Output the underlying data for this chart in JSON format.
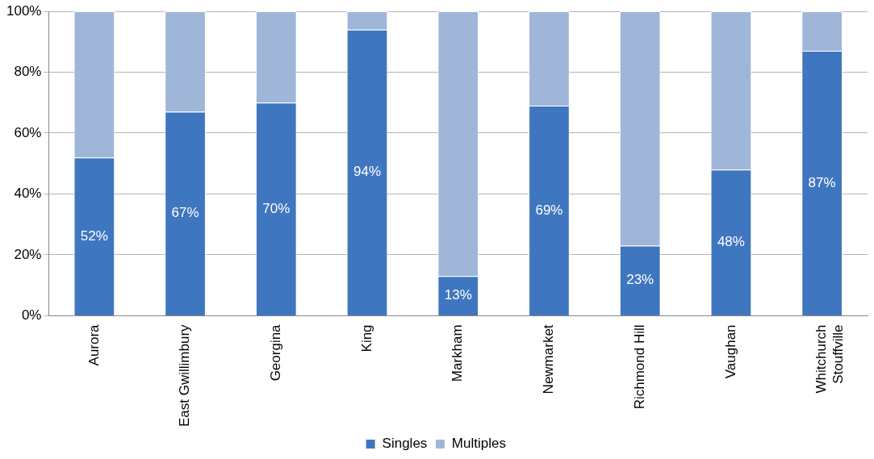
{
  "chart_data": {
    "type": "bar",
    "stacked": true,
    "categories": [
      "Aurora",
      "East Gwillimbury",
      "Georgina",
      "King",
      "Markham",
      "Newmarket",
      "Richmond Hill",
      "Vaughan",
      "Whitchurch\nStouffville"
    ],
    "series": [
      {
        "name": "Singles",
        "color": "#3f76c0",
        "values": [
          52,
          67,
          70,
          94,
          13,
          69,
          23,
          48,
          87
        ],
        "value_labels": [
          "52%",
          "67%",
          "70%",
          "94%",
          "13%",
          "69%",
          "23%",
          "48%",
          "87%"
        ]
      },
      {
        "name": "Multiples",
        "color": "#9fb6d8",
        "values": [
          48,
          33,
          30,
          6,
          87,
          31,
          77,
          52,
          13
        ]
      }
    ],
    "ylim": [
      0,
      100
    ],
    "yticks": [
      {
        "value": 0,
        "label": "0%"
      },
      {
        "value": 20,
        "label": "20%"
      },
      {
        "value": 40,
        "label": "40%"
      },
      {
        "value": 60,
        "label": "60%"
      },
      {
        "value": 80,
        "label": "80%"
      },
      {
        "value": 100,
        "label": "100%"
      }
    ],
    "grid": "y",
    "legend": "bottom"
  }
}
